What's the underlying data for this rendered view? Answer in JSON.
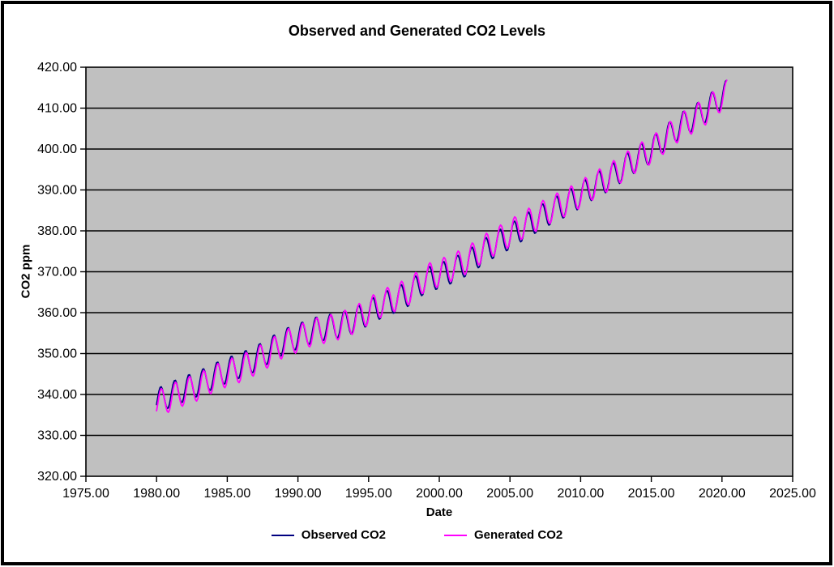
{
  "window": {
    "background": "#FFFFFF",
    "frame_color": "#000000"
  },
  "chart_data": {
    "type": "line",
    "title": "Observed and Generated CO2 Levels",
    "xlabel": "Date",
    "ylabel": "CO2 ppm",
    "xlim": [
      1975,
      2025
    ],
    "ylim": [
      320,
      420
    ],
    "x_ticks": [
      1975,
      1980,
      1985,
      1990,
      1995,
      2000,
      2005,
      2010,
      2015,
      2020,
      2025
    ],
    "y_ticks": [
      320,
      330,
      340,
      350,
      360,
      370,
      380,
      390,
      400,
      410,
      420
    ],
    "tick_label_decimals": 2,
    "grid": "horizontal-major",
    "plot_bg": "#C0C0C0",
    "gridline_color": "#000000",
    "axis_color": "#000000",
    "legend_position": "bottom-center",
    "x_data_start": 1980.0,
    "x_data_end": 2020.333,
    "samples_per_year": 12,
    "series": [
      {
        "name": "Observed CO2",
        "color": "#000080",
        "seasonal": {
          "amplitude": 3.1,
          "phase": 0.04,
          "period_years": 1
        },
        "annual_trend": {
          "start_year": 1980,
          "end_year": 2021,
          "values": [
            338.3,
            340.0,
            341.4,
            342.7,
            344.4,
            345.9,
            347.2,
            348.7,
            350.8,
            352.9,
            354.2,
            355.6,
            356.4,
            357.0,
            358.1,
            360.0,
            361.9,
            363.2,
            365.0,
            367.9,
            369.0,
            370.4,
            372.2,
            374.6,
            376.8,
            378.6,
            380.9,
            382.9,
            384.9,
            386.6,
            388.7,
            391.0,
            392.8,
            395.2,
            397.7,
            399.7,
            402.7,
            405.6,
            407.6,
            410.0,
            413.0,
            415.4
          ]
        }
      },
      {
        "name": "Generated CO2",
        "color": "#FF00FF",
        "seasonal": {
          "amplitude": 3.3,
          "phase": 0.08,
          "period_years": 1
        },
        "annual_trend": {
          "start_year": 1980,
          "end_year": 2021,
          "values": [
            337.6,
            339.2,
            340.7,
            341.9,
            343.8,
            345.2,
            346.4,
            348.1,
            350.1,
            352.4,
            353.6,
            355.2,
            355.9,
            356.8,
            358.2,
            360.4,
            362.4,
            363.8,
            365.5,
            368.5,
            369.7,
            371.2,
            372.9,
            375.4,
            377.5,
            379.4,
            381.6,
            383.5,
            385.4,
            387.0,
            389.0,
            391.2,
            393.1,
            395.4,
            397.8,
            399.7,
            402.5,
            405.3,
            407.3,
            409.6,
            412.7,
            415.1
          ]
        }
      }
    ]
  }
}
